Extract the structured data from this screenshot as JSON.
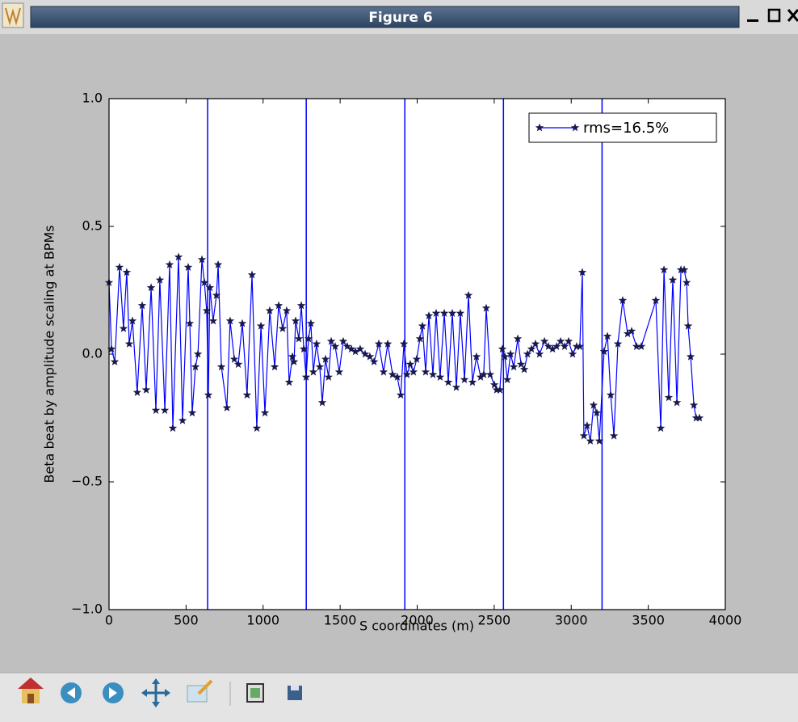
{
  "window": {
    "title": "Figure 6"
  },
  "chart_data": {
    "type": "line",
    "xlabel": "S coordinates (m)",
    "ylabel": "Beta beat by amplitude scaling at BPMs",
    "xlim": [
      0,
      4000
    ],
    "ylim": [
      -1,
      1
    ],
    "xticks": [
      0,
      500,
      1000,
      1500,
      2000,
      2500,
      3000,
      3500,
      4000
    ],
    "yticks": [
      {
        "value": 1,
        "label": "1.0"
      },
      {
        "value": 0.5,
        "label": "0.5"
      },
      {
        "value": 0,
        "label": "0.0"
      },
      {
        "value": -0.5,
        "label": "−0.5"
      },
      {
        "value": -1,
        "label": "−1.0"
      }
    ],
    "legend": "upper right",
    "x": [
      0,
      16,
      37,
      68,
      94,
      115,
      131,
      152,
      183,
      215,
      241,
      273,
      304,
      330,
      362,
      393,
      414,
      451,
      477,
      514,
      524,
      540,
      561,
      577,
      603,
      619,
      634,
      645,
      655,
      676,
      697,
      708,
      729,
      765,
      786,
      813,
      839,
      865,
      896,
      928,
      959,
      986,
      1012,
      1043,
      1075,
      1101,
      1127,
      1153,
      1169,
      1190,
      1201,
      1211,
      1232,
      1248,
      1264,
      1279,
      1295,
      1310,
      1326,
      1347,
      1368,
      1384,
      1405,
      1425,
      1442,
      1468,
      1494,
      1520,
      1546,
      1573,
      1599,
      1630,
      1662,
      1693,
      1720,
      1751,
      1782,
      1809,
      1840,
      1871,
      1893,
      1914,
      1934,
      1955,
      1976,
      1997,
      2018,
      2034,
      2055,
      2076,
      2102,
      2123,
      2149,
      2176,
      2202,
      2228,
      2254,
      2280,
      2307,
      2333,
      2359,
      2385,
      2412,
      2432,
      2448,
      2474,
      2501,
      2516,
      2537,
      2553,
      2569,
      2585,
      2606,
      2627,
      2653,
      2674,
      2695,
      2716,
      2742,
      2768,
      2794,
      2826,
      2852,
      2879,
      2905,
      2931,
      2957,
      2983,
      3009,
      3035,
      3056,
      3072,
      3082,
      3103,
      3124,
      3145,
      3166,
      3182,
      3213,
      3235,
      3256,
      3277,
      3303,
      3334,
      3366,
      3392,
      3424,
      3455,
      3549,
      3581,
      3602,
      3633,
      3659,
      3686,
      3712,
      3733,
      3749,
      3759,
      3775,
      3796,
      3811,
      3832
    ],
    "series": [
      {
        "name": "rms=16.5%",
        "color": "#0000ff",
        "marker_color": "#191950",
        "values": [
          0.28,
          0.02,
          -0.03,
          0.34,
          0.1,
          0.32,
          0.04,
          0.13,
          -0.15,
          0.19,
          -0.14,
          0.26,
          -0.22,
          0.29,
          -0.22,
          0.35,
          -0.29,
          0.38,
          -0.26,
          0.34,
          0.12,
          -0.23,
          -0.05,
          0.0,
          0.37,
          0.28,
          0.17,
          -0.16,
          0.26,
          0.13,
          0.23,
          0.35,
          -0.05,
          -0.21,
          0.13,
          -0.02,
          -0.04,
          0.12,
          -0.16,
          0.31,
          -0.29,
          0.11,
          -0.23,
          0.17,
          -0.05,
          0.19,
          0.1,
          0.17,
          -0.11,
          -0.01,
          -0.03,
          0.13,
          0.06,
          0.19,
          0.02,
          -0.09,
          0.06,
          0.12,
          -0.07,
          0.04,
          -0.05,
          -0.19,
          -0.02,
          -0.09,
          0.05,
          0.03,
          -0.07,
          0.05,
          0.03,
          0.02,
          0.01,
          0.02,
          0.0,
          -0.01,
          -0.03,
          0.04,
          -0.07,
          0.04,
          -0.08,
          -0.09,
          -0.16,
          0.04,
          -0.08,
          -0.04,
          -0.07,
          -0.02,
          0.06,
          0.11,
          -0.07,
          0.15,
          -0.08,
          0.16,
          -0.09,
          0.16,
          -0.11,
          0.16,
          -0.13,
          0.16,
          -0.1,
          0.23,
          -0.11,
          -0.01,
          -0.09,
          -0.08,
          0.18,
          -0.08,
          -0.12,
          -0.14,
          -0.14,
          0.02,
          -0.01,
          -0.1,
          0.0,
          -0.05,
          0.06,
          -0.04,
          -0.06,
          0.0,
          0.02,
          0.04,
          0.0,
          0.05,
          0.03,
          0.02,
          0.03,
          0.05,
          0.03,
          0.05,
          0.0,
          0.03,
          0.03,
          0.32,
          -0.32,
          -0.28,
          -0.34,
          -0.2,
          -0.23,
          -0.34,
          0.01,
          0.07,
          -0.16,
          -0.32,
          0.04,
          0.21,
          0.08,
          0.09,
          0.03,
          0.03,
          0.21,
          -0.29,
          0.33,
          -0.17,
          0.29,
          -0.19,
          0.33,
          0.33,
          0.28,
          0.11,
          -0.01,
          -0.2,
          -0.25,
          -0.25
        ]
      }
    ],
    "vlines": {
      "color": "#0000ff",
      "values": [
        640,
        1280,
        1920,
        2560,
        3200
      ]
    }
  }
}
